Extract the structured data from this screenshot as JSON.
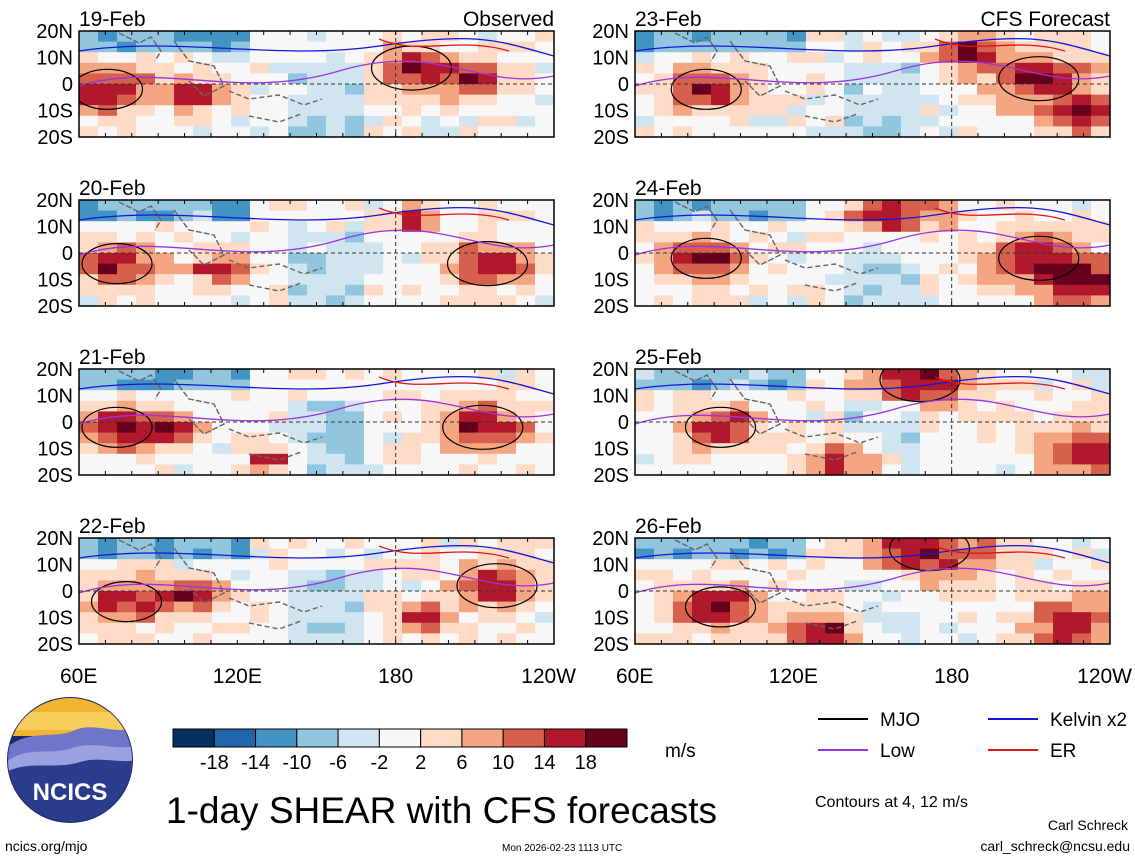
{
  "title": "1-day SHEAR with CFS forecasts",
  "panels_left_header": "Observed",
  "panels_right_header": "CFS Forecast",
  "chart_data": {
    "type": "heatmap",
    "variable": "1-day SHEAR",
    "units": "m/s",
    "colorbar": {
      "levels": [
        -18,
        -14,
        -10,
        -6,
        -2,
        2,
        6,
        10,
        14,
        18
      ],
      "labels": [
        "-18",
        "-14",
        "-10",
        "-6",
        "-2",
        "2",
        "6",
        "10",
        "14",
        "18"
      ],
      "colors": [
        "#053061",
        "#2166ac",
        "#4393c3",
        "#92c5de",
        "#d1e5f0",
        "#f7f7f7",
        "#fddbc7",
        "#f4a582",
        "#d6604d",
        "#b2182b",
        "#67001f"
      ]
    },
    "x_axis": {
      "range": [
        "60E",
        "120W"
      ],
      "ticks": [
        "60E",
        "120E",
        "180",
        "120W"
      ]
    },
    "y_axis": {
      "range": [
        "20S",
        "20N"
      ],
      "ticks": [
        "20N",
        "10N",
        "0",
        "10S",
        "20S"
      ]
    },
    "panels": [
      {
        "date": "19-Feb",
        "source": "Observed"
      },
      {
        "date": "20-Feb",
        "source": "Observed"
      },
      {
        "date": "21-Feb",
        "source": "Observed"
      },
      {
        "date": "22-Feb",
        "source": "Observed"
      },
      {
        "date": "23-Feb",
        "source": "CFS Forecast"
      },
      {
        "date": "24-Feb",
        "source": "CFS Forecast"
      },
      {
        "date": "25-Feb",
        "source": "CFS Forecast"
      },
      {
        "date": "26-Feb",
        "source": "CFS Forecast"
      }
    ],
    "legend": [
      {
        "label": "MJO",
        "color": "#000000"
      },
      {
        "label": "Kelvin x2",
        "color": "#1515d8"
      },
      {
        "label": "Low",
        "color": "#9b33e0"
      },
      {
        "label": "ER",
        "color": "#e01515"
      }
    ],
    "contour_note": "Contours at 4, 12 m/s"
  },
  "logo": {
    "text": "NCICS"
  },
  "footer": {
    "url": "ncics.org/mjo",
    "timestamp": "Mon 2026-02-23 1113 UTC",
    "author": "Carl Schreck",
    "email": "carl_schreck@ncsu.edu"
  }
}
